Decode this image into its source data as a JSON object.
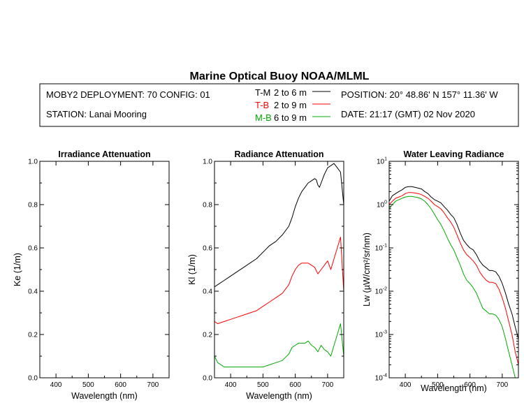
{
  "title": "Marine Optical Buoy NOAA/MLML",
  "header": {
    "deployment": "MOBY2 DEPLOYMENT: 70 CONFIG: 01",
    "station": "STATION: Lanai Mooring",
    "position": "POSITION: 20° 48.86' N   157° 11.36' W",
    "date": "DATE: 21:17 (GMT) 02 Nov 2020",
    "legend": [
      {
        "key": "T-M",
        "range": "2 to 6  m",
        "color": "#000000"
      },
      {
        "key": "T-B",
        "range": "2 to 9  m",
        "color": "#ff0000"
      },
      {
        "key": "M-B",
        "range": "6 to 9  m",
        "color": "#00aa00"
      }
    ]
  },
  "colors": {
    "tm": "#000000",
    "tb": "#ff0000",
    "mb": "#00aa00"
  },
  "chart_data": [
    {
      "type": "line",
      "title": "Irradiance Attenuation",
      "xlabel": "Wavelength (nm)",
      "ylabel": "Ke  (1/m)",
      "xlim": [
        350,
        750
      ],
      "ylim": [
        0,
        1
      ],
      "xticks": [
        "400",
        "500",
        "600",
        "700"
      ],
      "yticks": [
        "0.0",
        "0.2",
        "0.4",
        "0.6",
        "0.8",
        "1.0"
      ],
      "series": []
    },
    {
      "type": "line",
      "title": "Radiance Attenuation",
      "xlabel": "Wavelength (nm)",
      "ylabel": "Kl  (1/m)",
      "xlim": [
        350,
        750
      ],
      "ylim": [
        0,
        1
      ],
      "xticks": [
        "400",
        "500",
        "600",
        "700"
      ],
      "yticks": [
        "0.0",
        "0.2",
        "0.4",
        "0.6",
        "0.8",
        "1.0"
      ],
      "series": [
        {
          "name": "T-M",
          "color": "#000000",
          "x": [
            350,
            360,
            380,
            400,
            420,
            440,
            460,
            480,
            500,
            520,
            540,
            560,
            580,
            590,
            600,
            610,
            620,
            630,
            640,
            650,
            660,
            665,
            670,
            675,
            680,
            690,
            700,
            710,
            720,
            730,
            740,
            750
          ],
          "y": [
            0.42,
            0.43,
            0.45,
            0.47,
            0.49,
            0.51,
            0.53,
            0.55,
            0.58,
            0.61,
            0.63,
            0.66,
            0.7,
            0.74,
            0.79,
            0.83,
            0.86,
            0.88,
            0.9,
            0.91,
            0.92,
            0.915,
            0.89,
            0.88,
            0.9,
            0.94,
            0.97,
            0.98,
            0.99,
            0.97,
            0.95,
            0.8
          ]
        },
        {
          "name": "T-B",
          "color": "#ff0000",
          "x": [
            350,
            360,
            380,
            400,
            420,
            440,
            460,
            480,
            500,
            520,
            540,
            560,
            580,
            590,
            600,
            610,
            620,
            630,
            640,
            650,
            660,
            670,
            680,
            690,
            700,
            710,
            720,
            730,
            740,
            750
          ],
          "y": [
            0.26,
            0.25,
            0.26,
            0.27,
            0.28,
            0.29,
            0.3,
            0.31,
            0.33,
            0.35,
            0.37,
            0.39,
            0.43,
            0.47,
            0.5,
            0.52,
            0.53,
            0.53,
            0.53,
            0.52,
            0.51,
            0.48,
            0.5,
            0.52,
            0.54,
            0.5,
            0.55,
            0.6,
            0.65,
            0.4
          ]
        },
        {
          "name": "M-B",
          "color": "#00aa00",
          "x": [
            350,
            360,
            380,
            400,
            420,
            440,
            460,
            480,
            500,
            520,
            540,
            560,
            580,
            590,
            600,
            610,
            620,
            630,
            640,
            650,
            660,
            670,
            680,
            690,
            700,
            710,
            720,
            730,
            740,
            750
          ],
          "y": [
            0.1,
            0.07,
            0.05,
            0.05,
            0.05,
            0.05,
            0.05,
            0.05,
            0.05,
            0.06,
            0.07,
            0.08,
            0.11,
            0.14,
            0.15,
            0.16,
            0.16,
            0.16,
            0.17,
            0.15,
            0.14,
            0.12,
            0.15,
            0.13,
            0.12,
            0.1,
            0.15,
            0.2,
            0.25,
            0.1
          ]
        }
      ]
    },
    {
      "type": "line",
      "title": "Water Leaving Radiance",
      "xlabel": "Wavelength (nm)",
      "ylabel": "Lw  (µW/cm²/sr/nm)",
      "yscale": "log",
      "xlim": [
        350,
        750
      ],
      "ylim": [
        0.0001,
        10
      ],
      "xticks": [
        "400",
        "500",
        "600",
        "700"
      ],
      "yticks": [
        {
          "base": "10",
          "exp": "-4"
        },
        {
          "base": "10",
          "exp": "-3"
        },
        {
          "base": "10",
          "exp": "-2"
        },
        {
          "base": "10",
          "exp": "-1"
        },
        {
          "base": "10",
          "exp": "0"
        },
        {
          "base": "10",
          "exp": "1"
        }
      ],
      "series": [
        {
          "name": "T-M",
          "color": "#000000",
          "x": [
            350,
            360,
            370,
            380,
            390,
            400,
            410,
            420,
            430,
            440,
            450,
            460,
            470,
            480,
            490,
            500,
            510,
            520,
            530,
            540,
            550,
            560,
            570,
            580,
            590,
            600,
            610,
            620,
            630,
            640,
            650,
            660,
            670,
            680,
            690,
            700,
            710,
            720,
            730,
            740,
            750
          ],
          "y": [
            1.2,
            1.6,
            1.8,
            2.0,
            2.2,
            2.5,
            2.6,
            2.6,
            2.5,
            2.4,
            2.3,
            2.0,
            1.8,
            1.5,
            1.3,
            1.2,
            1.1,
            0.9,
            0.75,
            0.6,
            0.5,
            0.35,
            0.22,
            0.15,
            0.12,
            0.1,
            0.09,
            0.07,
            0.05,
            0.04,
            0.035,
            0.03,
            0.03,
            0.028,
            0.022,
            0.015,
            0.009,
            0.005,
            0.003,
            0.0015,
            0.0008
          ]
        },
        {
          "name": "T-B",
          "color": "#ff0000",
          "x": [
            350,
            360,
            370,
            380,
            390,
            400,
            410,
            420,
            430,
            440,
            450,
            460,
            470,
            480,
            490,
            500,
            510,
            520,
            530,
            540,
            550,
            560,
            570,
            580,
            590,
            600,
            610,
            620,
            630,
            640,
            650,
            660,
            670,
            680,
            690,
            700,
            710,
            720,
            730,
            740,
            750
          ],
          "y": [
            1.0,
            1.2,
            1.4,
            1.5,
            1.6,
            1.8,
            1.9,
            1.9,
            1.85,
            1.8,
            1.7,
            1.55,
            1.4,
            1.2,
            1.0,
            0.9,
            0.8,
            0.65,
            0.5,
            0.4,
            0.3,
            0.2,
            0.13,
            0.09,
            0.07,
            0.06,
            0.05,
            0.04,
            0.028,
            0.022,
            0.018,
            0.016,
            0.016,
            0.015,
            0.011,
            0.007,
            0.004,
            0.002,
            0.001,
            0.0004,
            0.0002
          ]
        },
        {
          "name": "M-B",
          "color": "#00aa00",
          "x": [
            350,
            360,
            370,
            380,
            390,
            400,
            410,
            420,
            430,
            440,
            450,
            460,
            470,
            480,
            490,
            500,
            510,
            520,
            530,
            540,
            550,
            560,
            570,
            580,
            590,
            600,
            610,
            620,
            630,
            640,
            650,
            660,
            670,
            680,
            690,
            700,
            710,
            720,
            730,
            740,
            750
          ],
          "y": [
            0.8,
            1.0,
            1.2,
            1.3,
            1.4,
            1.5,
            1.55,
            1.55,
            1.5,
            1.45,
            1.35,
            1.2,
            1.0,
            0.8,
            0.6,
            0.45,
            0.35,
            0.25,
            0.17,
            0.12,
            0.09,
            0.06,
            0.04,
            0.025,
            0.018,
            0.015,
            0.012,
            0.009,
            0.006,
            0.004,
            0.0035,
            0.003,
            0.003,
            0.0028,
            0.0022,
            0.0015,
            0.0008,
            0.0004,
            0.0002,
            0.0001,
            0.0001
          ]
        }
      ]
    }
  ]
}
